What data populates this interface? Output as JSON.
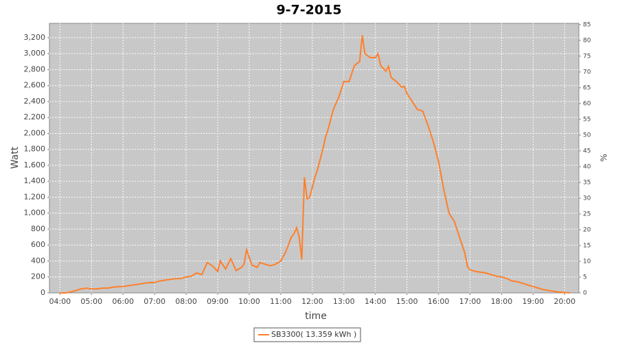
{
  "chart_data": {
    "type": "line",
    "title": "9-7-2015",
    "xlabel": "time",
    "ylabel": "Watt",
    "y2label": "%",
    "x": [
      "04:00",
      "04:10",
      "04:20",
      "04:30",
      "04:40",
      "04:50",
      "05:00",
      "05:10",
      "05:20",
      "05:30",
      "05:40",
      "05:50",
      "06:00",
      "06:10",
      "06:20",
      "06:30",
      "06:40",
      "06:50",
      "07:00",
      "07:10",
      "07:20",
      "07:30",
      "07:40",
      "07:50",
      "08:00",
      "08:10",
      "08:20",
      "08:30",
      "08:40",
      "08:50",
      "09:00",
      "09:05",
      "09:15",
      "09:25",
      "09:35",
      "09:45",
      "09:50",
      "09:55",
      "10:05",
      "10:15",
      "10:20",
      "10:30",
      "10:40",
      "10:50",
      "11:00",
      "11:10",
      "11:20",
      "11:25",
      "11:30",
      "11:35",
      "11:40",
      "11:45",
      "11:50",
      "11:55",
      "12:05",
      "12:10",
      "12:20",
      "12:25",
      "12:30",
      "12:40",
      "12:50",
      "13:00",
      "13:10",
      "13:20",
      "13:30",
      "13:35",
      "13:40",
      "13:50",
      "14:00",
      "14:05",
      "14:10",
      "14:20",
      "14:25",
      "14:30",
      "14:40",
      "14:50",
      "14:55",
      "15:00",
      "15:10",
      "15:20",
      "15:30",
      "15:40",
      "15:50",
      "16:00",
      "16:10",
      "16:20",
      "16:30",
      "16:40",
      "16:50",
      "16:55",
      "17:00",
      "17:10",
      "17:20",
      "17:30",
      "17:40",
      "17:50",
      "18:00",
      "18:10",
      "18:20",
      "18:30",
      "18:40",
      "18:50",
      "19:00",
      "19:10",
      "19:20",
      "19:30",
      "19:40",
      "19:50",
      "20:00",
      "20:10"
    ],
    "series": [
      {
        "name": "SB3300( 13.359 kWh )",
        "color": "#ff7f2a",
        "values": [
          0,
          0,
          10,
          30,
          50,
          60,
          50,
          50,
          60,
          60,
          70,
          80,
          80,
          90,
          100,
          110,
          120,
          130,
          130,
          150,
          160,
          170,
          180,
          180,
          200,
          210,
          250,
          230,
          380,
          340,
          270,
          400,
          300,
          430,
          280,
          320,
          360,
          540,
          350,
          320,
          380,
          360,
          340,
          360,
          400,
          520,
          700,
          740,
          820,
          700,
          420,
          1450,
          1180,
          1200,
          1450,
          1550,
          1800,
          1950,
          2050,
          2300,
          2450,
          2650,
          2650,
          2850,
          2900,
          3230,
          3000,
          2950,
          2950,
          3000,
          2850,
          2780,
          2840,
          2700,
          2650,
          2580,
          2590,
          2500,
          2400,
          2300,
          2280,
          2100,
          1900,
          1650,
          1300,
          1000,
          900,
          700,
          500,
          330,
          290,
          270,
          260,
          250,
          230,
          210,
          200,
          180,
          150,
          140,
          120,
          100,
          80,
          60,
          40,
          30,
          20,
          10,
          5,
          0
        ]
      }
    ],
    "xlim": [
      "03:40",
      "20:27"
    ],
    "xticks": [
      "04:00",
      "05:00",
      "06:00",
      "07:00",
      "08:00",
      "09:00",
      "10:00",
      "11:00",
      "12:00",
      "13:00",
      "14:00",
      "15:00",
      "16:00",
      "17:00",
      "18:00",
      "19:00",
      "20:00"
    ],
    "ylim": [
      0,
      3380
    ],
    "yticks": [
      0,
      200,
      400,
      600,
      800,
      {
        "value": 1000,
        "label": "1,000"
      },
      {
        "value": 1200,
        "label": "1,200"
      },
      {
        "value": 1400,
        "label": "1,400"
      },
      {
        "value": 1600,
        "label": "1,600"
      },
      {
        "value": 1800,
        "label": "1,800"
      },
      {
        "value": 2000,
        "label": "2,000"
      },
      {
        "value": 2200,
        "label": "2,200"
      },
      {
        "value": 2400,
        "label": "2,400"
      },
      {
        "value": 2600,
        "label": "2,600"
      },
      {
        "value": 2800,
        "label": "2,800"
      },
      {
        "value": 3000,
        "label": "3,000"
      },
      {
        "value": 3200,
        "label": "3,200"
      }
    ],
    "y2lim": [
      0,
      85.4
    ],
    "y2ticks": [
      0,
      5,
      10,
      15,
      20,
      25,
      30,
      35,
      40,
      45,
      50,
      55,
      60,
      65,
      70,
      75,
      80,
      85
    ],
    "grid": true,
    "legend": "bottom"
  }
}
